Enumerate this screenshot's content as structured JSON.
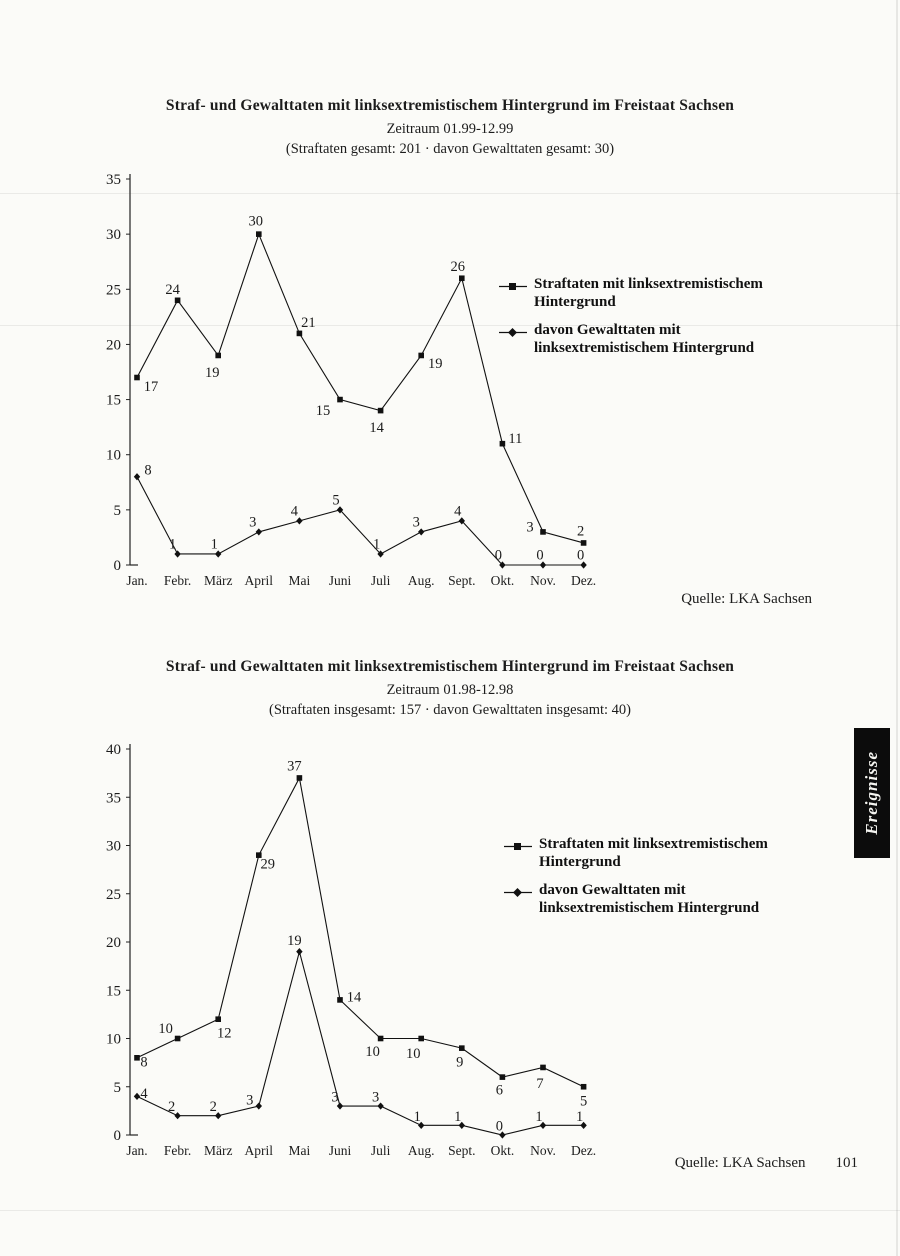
{
  "page": {
    "side_tab_label": "Ereignisse",
    "page_number": "101"
  },
  "chart_data": [
    {
      "type": "line",
      "title": "Straf- und Gewalttaten mit linksextremistischem Hintergrund im Freistaat Sachsen",
      "subtitle": "Zeitraum 01.99-12.99",
      "totals_line": "(Straftaten gesamt: 201 · davon Gewalttaten gesamt: 30)",
      "source": "Quelle: LKA Sachsen",
      "categories": [
        "Jan.",
        "Febr.",
        "März",
        "April",
        "Mai",
        "Juni",
        "Juli",
        "Aug.",
        "Sept.",
        "Okt.",
        "Nov.",
        "Dez."
      ],
      "ylim": [
        0,
        35
      ],
      "ytick_step": 5,
      "grid": false,
      "legend_position": "right",
      "series": [
        {
          "name": "Straftaten mit linksextremistischem Hintergrund",
          "marker": "square",
          "values": [
            17,
            24,
            19,
            30,
            21,
            15,
            14,
            19,
            26,
            11,
            3,
            2
          ],
          "label_offsets": [
            [
              14,
              9
            ],
            [
              -5,
              -11
            ],
            [
              -6,
              17
            ],
            [
              -3,
              -13
            ],
            [
              9,
              -11
            ],
            [
              -17,
              11
            ],
            [
              -4,
              17
            ],
            [
              14,
              8
            ],
            [
              -4,
              -12
            ],
            [
              13,
              -5
            ],
            [
              -13,
              -5
            ],
            [
              -3,
              -12
            ]
          ]
        },
        {
          "name": "davon Gewalttaten mit linksextremistischem Hintergrund",
          "marker": "diamond",
          "values": [
            8,
            1,
            1,
            3,
            4,
            5,
            1,
            3,
            4,
            0,
            0,
            0
          ],
          "label_offsets": [
            [
              11,
              -7
            ],
            [
              -5,
              -10
            ],
            [
              -4,
              -10
            ],
            [
              -6,
              -10
            ],
            [
              -5,
              -10
            ],
            [
              -4,
              -10
            ],
            [
              -4,
              -10
            ],
            [
              -5,
              -10
            ],
            [
              -4,
              -10
            ],
            [
              -4,
              -10
            ],
            [
              -3,
              -10
            ],
            [
              -3,
              -10
            ]
          ]
        }
      ]
    },
    {
      "type": "line",
      "title": "Straf- und Gewalttaten mit linksextremistischem Hintergrund im Freistaat Sachsen",
      "subtitle": "Zeitraum 01.98-12.98",
      "totals_line": "(Straftaten insgesamt: 157 · davon Gewalttaten insgesamt: 40)",
      "source": "Quelle: LKA Sachsen",
      "categories": [
        "Jan.",
        "Febr.",
        "März",
        "April",
        "Mai",
        "Juni",
        "Juli",
        "Aug.",
        "Sept.",
        "Okt.",
        "Nov.",
        "Dez."
      ],
      "ylim": [
        0,
        40
      ],
      "ytick_step": 5,
      "grid": false,
      "legend_position": "right",
      "series": [
        {
          "name": "Straftaten mit linksextremistischem Hintergrund",
          "marker": "square",
          "values": [
            8,
            10,
            12,
            29,
            37,
            14,
            10,
            10,
            9,
            6,
            7,
            5
          ],
          "label_offsets": [
            [
              7,
              4
            ],
            [
              -12,
              -10
            ],
            [
              6,
              14
            ],
            [
              9,
              9
            ],
            [
              -5,
              -12
            ],
            [
              14,
              -3
            ],
            [
              -8,
              13
            ],
            [
              -8,
              15
            ],
            [
              -2,
              14
            ],
            [
              -3,
              13
            ],
            [
              -3,
              16
            ],
            [
              0,
              14
            ]
          ]
        },
        {
          "name": "davon Gewalttaten mit linksextremistischem Hintergrund",
          "marker": "diamond",
          "values": [
            4,
            2,
            2,
            3,
            19,
            3,
            3,
            1,
            1,
            0,
            1,
            1
          ],
          "label_offsets": [
            [
              7,
              -3
            ],
            [
              -6,
              -9
            ],
            [
              -5,
              -9
            ],
            [
              -9,
              -6
            ],
            [
              -5,
              -11
            ],
            [
              -5,
              -9
            ],
            [
              -5,
              -9
            ],
            [
              -4,
              -9
            ],
            [
              -4,
              -9
            ],
            [
              -3,
              -9
            ],
            [
              -4,
              -9
            ],
            [
              -4,
              -9
            ]
          ]
        }
      ]
    }
  ]
}
